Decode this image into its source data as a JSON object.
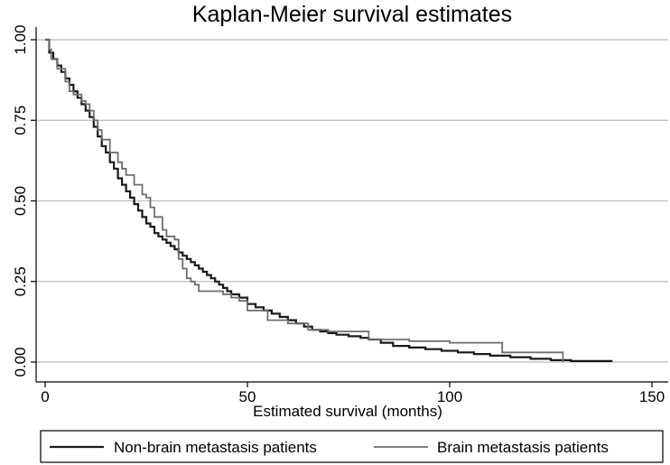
{
  "chart_data": {
    "type": "line",
    "subtype": "kaplan-meier step",
    "title": "Kaplan-Meier survival estimates",
    "xlabel": "Estimated survival (months)",
    "ylabel": "",
    "xlim": [
      0,
      150
    ],
    "ylim": [
      0,
      1
    ],
    "x_ticks": [
      0,
      50,
      100,
      150
    ],
    "x_tick_labels": [
      "0",
      "50",
      "100",
      "150"
    ],
    "y_ticks": [
      0,
      0.25,
      0.5,
      0.75,
      1
    ],
    "y_tick_labels": [
      "0.00",
      "0.25",
      "0.50",
      "0.75",
      "1.00"
    ],
    "grid": "horizontal",
    "legend_position": "bottom",
    "series": [
      {
        "name": "Non-brain metastasis patients",
        "color": "#1a1a1a",
        "x": [
          0,
          1,
          2,
          3,
          4,
          5,
          6,
          7,
          8,
          9,
          10,
          11,
          12,
          13,
          14,
          15,
          16,
          17,
          18,
          19,
          20,
          21,
          22,
          23,
          24,
          25,
          26,
          27,
          28,
          29,
          30,
          31,
          32,
          33,
          34,
          35,
          36,
          37,
          38,
          39,
          40,
          41,
          42,
          43,
          44,
          45,
          46,
          48,
          50,
          52,
          54,
          56,
          58,
          60,
          62,
          64,
          66,
          68,
          70,
          72,
          75,
          78,
          80,
          83,
          86,
          90,
          94,
          98,
          102,
          106,
          110,
          115,
          120,
          125,
          130,
          140
        ],
        "y": [
          1.0,
          0.96,
          0.94,
          0.92,
          0.9,
          0.88,
          0.86,
          0.84,
          0.82,
          0.8,
          0.78,
          0.76,
          0.73,
          0.7,
          0.67,
          0.65,
          0.62,
          0.6,
          0.57,
          0.55,
          0.53,
          0.51,
          0.49,
          0.47,
          0.45,
          0.43,
          0.42,
          0.4,
          0.39,
          0.38,
          0.37,
          0.36,
          0.35,
          0.34,
          0.33,
          0.32,
          0.31,
          0.3,
          0.29,
          0.28,
          0.27,
          0.26,
          0.25,
          0.24,
          0.23,
          0.22,
          0.21,
          0.2,
          0.18,
          0.17,
          0.16,
          0.15,
          0.14,
          0.13,
          0.12,
          0.11,
          0.1,
          0.095,
          0.09,
          0.085,
          0.08,
          0.075,
          0.07,
          0.06,
          0.05,
          0.045,
          0.04,
          0.035,
          0.03,
          0.025,
          0.02,
          0.015,
          0.01,
          0.006,
          0.003,
          0.0
        ]
      },
      {
        "name": "Brain metastasis patients",
        "color": "#6e6e6e",
        "x": [
          0,
          1,
          1.5,
          3,
          5,
          6,
          7,
          9,
          10,
          11,
          12,
          13,
          14,
          16,
          18,
          19,
          20,
          22,
          24,
          25,
          26,
          27,
          29,
          30,
          32,
          33,
          34,
          35,
          36,
          37,
          38,
          44,
          46,
          48,
          50,
          55,
          60,
          65,
          70,
          80,
          90,
          100,
          113,
          128
        ],
        "y": [
          1.0,
          0.97,
          0.94,
          0.91,
          0.87,
          0.84,
          0.83,
          0.81,
          0.8,
          0.78,
          0.75,
          0.72,
          0.69,
          0.65,
          0.62,
          0.6,
          0.58,
          0.55,
          0.52,
          0.51,
          0.48,
          0.45,
          0.41,
          0.39,
          0.38,
          0.32,
          0.29,
          0.26,
          0.25,
          0.24,
          0.22,
          0.21,
          0.2,
          0.19,
          0.16,
          0.13,
          0.12,
          0.1,
          0.095,
          0.07,
          0.065,
          0.06,
          0.03,
          0.0
        ]
      }
    ]
  }
}
